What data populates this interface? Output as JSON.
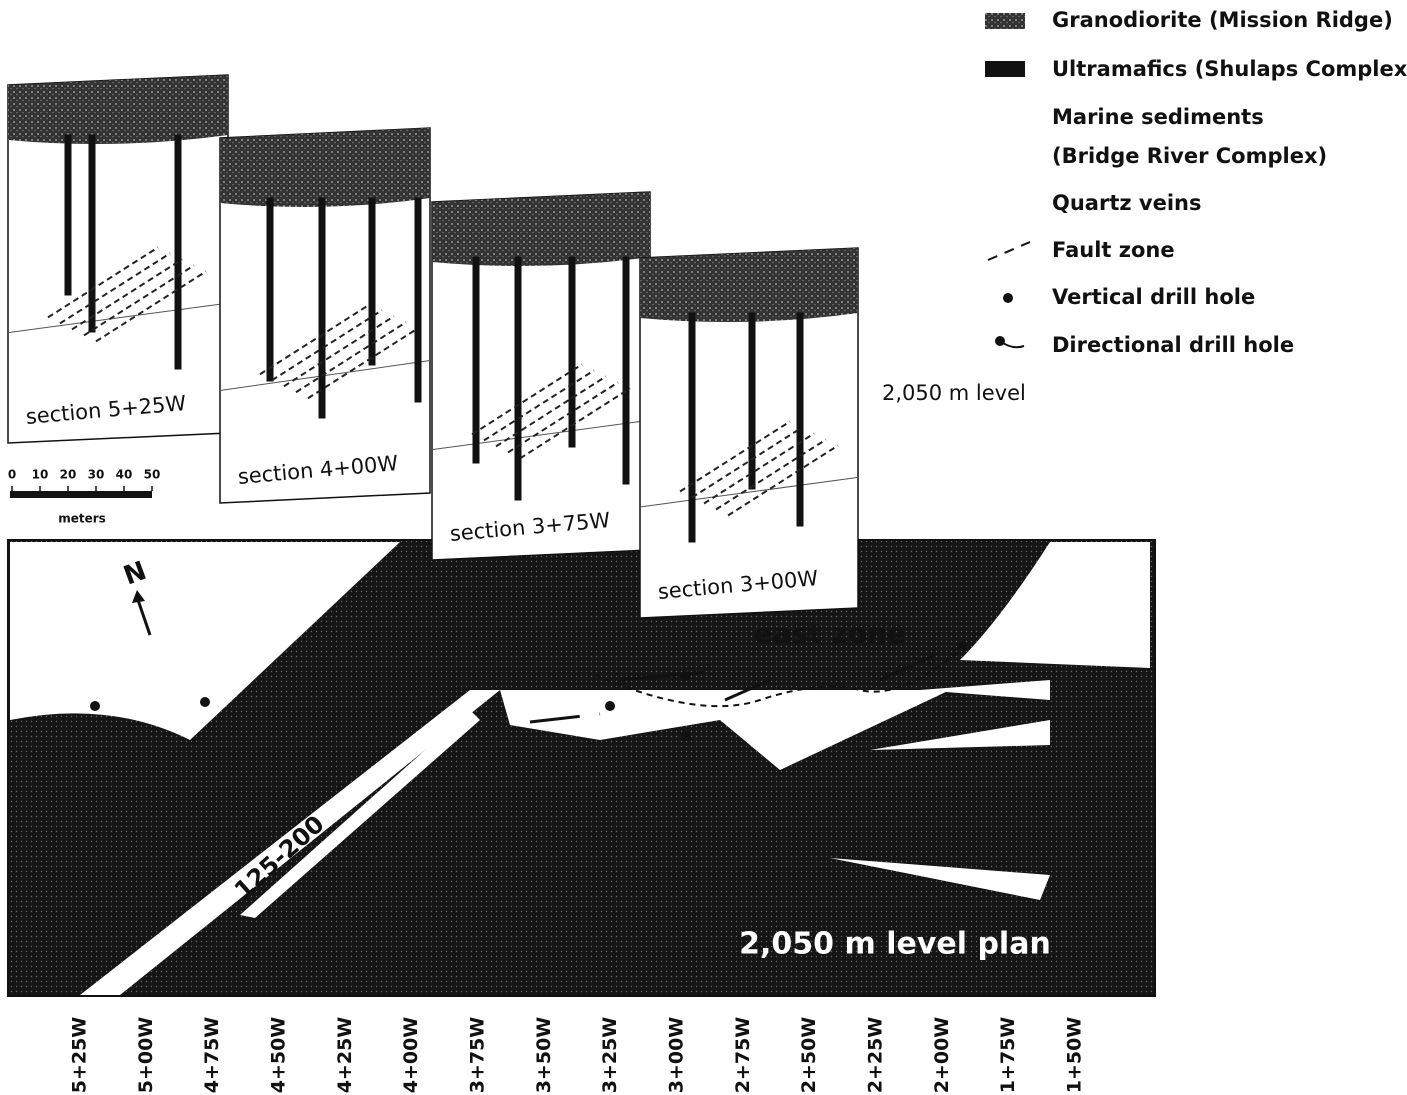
{
  "legend": [
    "Granodiorite (Mission Ridge)",
    "Ultramafics (Shulaps Complex)",
    "Marine sediments",
    "(Bridge River Complex)",
    "Quartz veins",
    "Fault zone",
    "Vertical drill hole",
    "Directional drill hole"
  ],
  "sections": [
    "section 5+25W",
    "section 4+00W",
    "section 3+75W",
    "section 3+00W"
  ],
  "level_label": "2,050 m level",
  "scale": {
    "ticks": [
      0,
      10,
      20,
      30,
      40,
      50
    ],
    "unit": "meters"
  },
  "plan": {
    "north": "N",
    "zone": "east zone",
    "vein": "125-200",
    "title": "2,050 m level plan"
  },
  "stations": [
    "5+25W",
    "5+00W",
    "4+75W",
    "4+50W",
    "4+25W",
    "4+00W",
    "3+75W",
    "3+50W",
    "3+25W",
    "3+00W",
    "2+75W",
    "2+50W",
    "2+25W",
    "2+00W",
    "1+75W",
    "1+50W"
  ]
}
